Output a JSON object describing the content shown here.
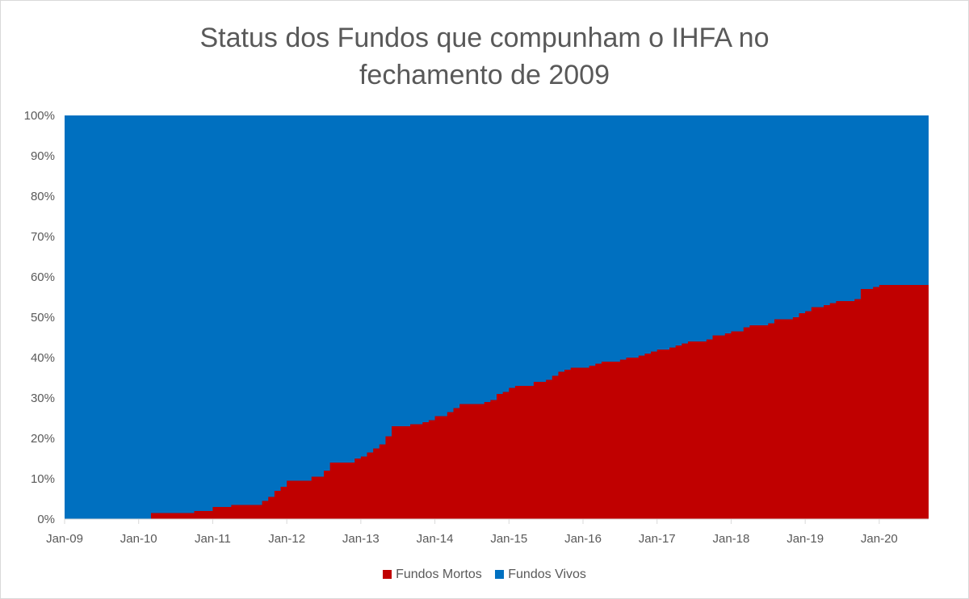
{
  "chart_data": {
    "type": "area",
    "stacked": true,
    "percent_stacked": true,
    "title_lines": [
      "Status dos Fundos que compunham o IHFA no",
      "fechamento de 2009"
    ],
    "xlabel": "",
    "ylabel": "",
    "ylim": [
      0,
      100
    ],
    "y_ticks": [
      "0%",
      "10%",
      "20%",
      "30%",
      "40%",
      "50%",
      "60%",
      "70%",
      "80%",
      "90%",
      "100%"
    ],
    "x_ticks": [
      "Jan-09",
      "Jan-10",
      "Jan-11",
      "Jan-12",
      "Jan-13",
      "Jan-14",
      "Jan-15",
      "Jan-16",
      "Jan-17",
      "Jan-18",
      "Jan-19",
      "Jan-20"
    ],
    "x_range": [
      "2009-01",
      "2020-08"
    ],
    "legend_position": "bottom",
    "grid": false,
    "x": [
      "2009-01",
      "2009-02",
      "2009-03",
      "2009-04",
      "2009-05",
      "2009-06",
      "2009-07",
      "2009-08",
      "2009-09",
      "2009-10",
      "2009-11",
      "2009-12",
      "2010-01",
      "2010-02",
      "2010-03",
      "2010-04",
      "2010-05",
      "2010-06",
      "2010-07",
      "2010-08",
      "2010-09",
      "2010-10",
      "2010-11",
      "2010-12",
      "2011-01",
      "2011-02",
      "2011-03",
      "2011-04",
      "2011-05",
      "2011-06",
      "2011-07",
      "2011-08",
      "2011-09",
      "2011-10",
      "2011-11",
      "2011-12",
      "2012-01",
      "2012-02",
      "2012-03",
      "2012-04",
      "2012-05",
      "2012-06",
      "2012-07",
      "2012-08",
      "2012-09",
      "2012-10",
      "2012-11",
      "2012-12",
      "2013-01",
      "2013-02",
      "2013-03",
      "2013-04",
      "2013-05",
      "2013-06",
      "2013-07",
      "2013-08",
      "2013-09",
      "2013-10",
      "2013-11",
      "2013-12",
      "2014-01",
      "2014-02",
      "2014-03",
      "2014-04",
      "2014-05",
      "2014-06",
      "2014-07",
      "2014-08",
      "2014-09",
      "2014-10",
      "2014-11",
      "2014-12",
      "2015-01",
      "2015-02",
      "2015-03",
      "2015-04",
      "2015-05",
      "2015-06",
      "2015-07",
      "2015-08",
      "2015-09",
      "2015-10",
      "2015-11",
      "2015-12",
      "2016-01",
      "2016-02",
      "2016-03",
      "2016-04",
      "2016-05",
      "2016-06",
      "2016-07",
      "2016-08",
      "2016-09",
      "2016-10",
      "2016-11",
      "2016-12",
      "2017-01",
      "2017-02",
      "2017-03",
      "2017-04",
      "2017-05",
      "2017-06",
      "2017-07",
      "2017-08",
      "2017-09",
      "2017-10",
      "2017-11",
      "2017-12",
      "2018-01",
      "2018-02",
      "2018-03",
      "2018-04",
      "2018-05",
      "2018-06",
      "2018-07",
      "2018-08",
      "2018-09",
      "2018-10",
      "2018-11",
      "2018-12",
      "2019-01",
      "2019-02",
      "2019-03",
      "2019-04",
      "2019-05",
      "2019-06",
      "2019-07",
      "2019-08",
      "2019-09",
      "2019-10",
      "2019-11",
      "2019-12",
      "2020-01",
      "2020-02",
      "2020-03",
      "2020-04",
      "2020-05",
      "2020-06",
      "2020-07",
      "2020-08"
    ],
    "series": [
      {
        "name": "Fundos Mortos",
        "color": "#c00000",
        "values": [
          0,
          0,
          0,
          0,
          0,
          0,
          0,
          0,
          0,
          0,
          0,
          0,
          0,
          0,
          1.5,
          1.5,
          1.5,
          1.5,
          1.5,
          1.5,
          1.5,
          2.0,
          2.0,
          2.0,
          3.0,
          3.0,
          3.0,
          3.5,
          3.5,
          3.5,
          3.5,
          3.5,
          4.5,
          5.5,
          7.0,
          8.0,
          9.5,
          9.5,
          9.5,
          9.5,
          10.5,
          10.5,
          12.0,
          14.0,
          14.0,
          14.0,
          14.0,
          15.0,
          15.5,
          16.5,
          17.5,
          18.5,
          20.5,
          23.0,
          23.0,
          23.0,
          23.5,
          23.5,
          24.0,
          24.5,
          25.5,
          25.5,
          26.5,
          27.5,
          28.5,
          28.5,
          28.5,
          28.5,
          29.0,
          29.5,
          31.0,
          31.5,
          32.5,
          33.0,
          33.0,
          33.0,
          34.0,
          34.0,
          34.5,
          35.5,
          36.5,
          37.0,
          37.5,
          37.5,
          37.5,
          38.0,
          38.5,
          39.0,
          39.0,
          39.0,
          39.5,
          40.0,
          40.0,
          40.5,
          41.0,
          41.5,
          42.0,
          42.0,
          42.5,
          43.0,
          43.5,
          44.0,
          44.0,
          44.0,
          44.5,
          45.5,
          45.5,
          46.0,
          46.5,
          46.5,
          47.5,
          48.0,
          48.0,
          48.0,
          48.5,
          49.5,
          49.5,
          49.5,
          50.0,
          51.0,
          51.5,
          52.5,
          52.5,
          53.0,
          53.5,
          54.0,
          54.0,
          54.0,
          54.5,
          57.0,
          57.0,
          57.5,
          58.0,
          58.0,
          58.0,
          58.0,
          58.0,
          58.0,
          58.0,
          58.0
        ]
      },
      {
        "name": "Fundos Vivos",
        "color": "#0070c0",
        "values": "complement to 100%"
      }
    ]
  }
}
